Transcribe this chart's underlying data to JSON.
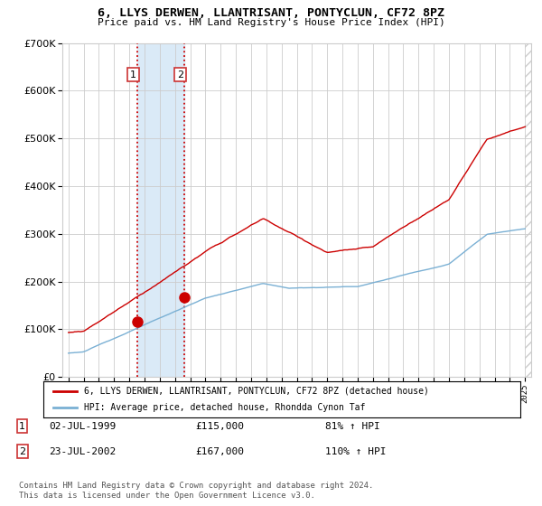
{
  "title": "6, LLYS DERWEN, LLANTRISANT, PONTYCLUN, CF72 8PZ",
  "subtitle": "Price paid vs. HM Land Registry's House Price Index (HPI)",
  "legend_label_red": "6, LLYS DERWEN, LLANTRISANT, PONTYCLUN, CF72 8PZ (detached house)",
  "legend_label_blue": "HPI: Average price, detached house, Rhondda Cynon Taf",
  "transaction1_date": "02-JUL-1999",
  "transaction1_price": "£115,000",
  "transaction1_hpi": "81% ↑ HPI",
  "transaction2_date": "23-JUL-2002",
  "transaction2_price": "£167,000",
  "transaction2_hpi": "110% ↑ HPI",
  "footnote": "Contains HM Land Registry data © Crown copyright and database right 2024.\nThis data is licensed under the Open Government Licence v3.0.",
  "marker1_x": 1999.5,
  "marker1_y": 115000,
  "marker2_x": 2002.6,
  "marker2_y": 167000,
  "vline1_x": 1999.5,
  "vline2_x": 2002.6,
  "shade_x1": 1999.5,
  "shade_x2": 2002.6,
  "ylim": [
    0,
    700000
  ],
  "xlim_start": 1994.6,
  "xlim_end": 2025.4,
  "red_color": "#cc0000",
  "blue_color": "#7ab0d4",
  "shade_color": "#daeaf7",
  "grid_color": "#cccccc",
  "background_color": "#ffffff",
  "hatch_color": "#cccccc"
}
